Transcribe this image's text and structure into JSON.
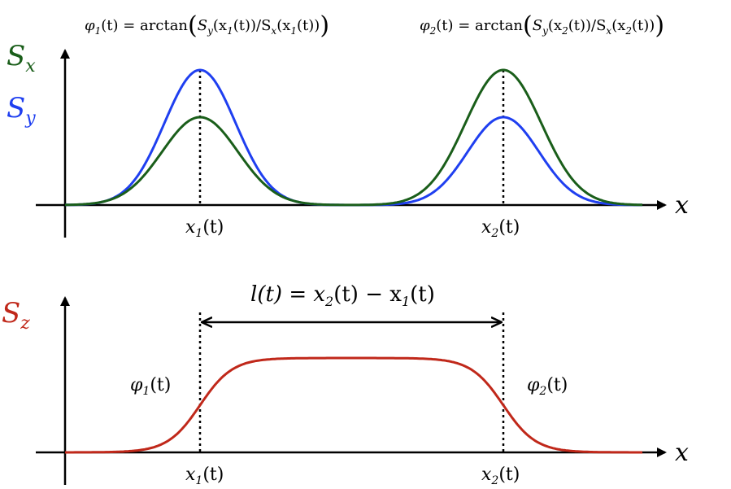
{
  "top_panel": {
    "formulas": {
      "phi1_lhs": "φ",
      "phi1_sub": "1",
      "phi1_rest": "(t) = arctan",
      "phi1_arg": "S",
      "phi1_arg_sub_y": "y",
      "phi1_arg_mid": "(x",
      "phi1_arg_mid_sub": "1",
      "phi1_arg_mid_rest": "(t))/S",
      "phi1_arg_sub_x": "x",
      "phi1_arg_end": "(x",
      "phi1_arg_end_sub": "1",
      "phi1_arg_tail": "(t))",
      "phi2_lhs": "φ",
      "phi2_sub": "2",
      "phi2_rest": "(t) = arctan",
      "phi2_arg": "S",
      "phi2_arg_sub_y": "y",
      "phi2_arg_mid": "(x",
      "phi2_arg_mid_sub": "2",
      "phi2_arg_mid_rest": "(t))/S",
      "phi2_arg_sub_x": "x",
      "phi2_arg_end": "(x",
      "phi2_arg_end_sub": "2",
      "phi2_arg_tail": "(t))"
    },
    "legend_sx": "S",
    "legend_sx_sub": "x",
    "legend_sy": "S",
    "legend_sy_sub": "y",
    "x_axis_label": "x",
    "marker1_label": "x",
    "marker1_sub": "1",
    "marker1_rest": "(t)",
    "marker2_label": "x",
    "marker2_sub": "2",
    "marker2_rest": "(t)"
  },
  "bottom_panel": {
    "y_label": "S",
    "y_label_sub": "z",
    "x_axis_label": "x",
    "length_label": "l(t) = x",
    "length_sub2": "2",
    "length_mid": "(t) − x",
    "length_sub1": "1",
    "length_tail": "(t)",
    "phi1_label": "φ",
    "phi1_sub": "1",
    "phi1_rest": "(t)",
    "phi2_label": "φ",
    "phi2_sub": "2",
    "phi2_rest": "(t)",
    "marker1_label": "x",
    "marker1_sub": "1",
    "marker1_rest": "(t)",
    "marker2_label": "x",
    "marker2_sub": "2",
    "marker2_rest": "(t)"
  },
  "colors": {
    "sx": "#1a5e1a",
    "sy": "#1f3ff0",
    "sz": "#c0281a",
    "axis": "#000000"
  }
}
